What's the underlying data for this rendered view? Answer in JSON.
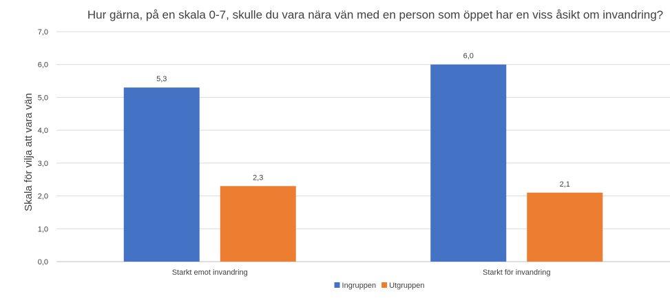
{
  "chart_data": {
    "type": "bar",
    "title": "Hur gärna, på en skala 0-7, skulle du vara nära vän med en person som öppet har en viss åsikt om invandring?",
    "ylabel": "Skala för vilja att vara vän",
    "xlabel": "",
    "categories": [
      "Starkt emot invandring",
      "Starkt för invandring"
    ],
    "series": [
      {
        "name": "Ingruppen",
        "color": "#4472C4",
        "values": [
          5.3,
          6.0
        ],
        "labels": [
          "5,3",
          "6,0"
        ]
      },
      {
        "name": "Utgruppen",
        "color": "#ED7D31",
        "values": [
          2.3,
          2.1
        ],
        "labels": [
          "2,3",
          "2,1"
        ]
      }
    ],
    "ylim": [
      0,
      7
    ],
    "yticks": [
      "0,0",
      "1,0",
      "2,0",
      "3,0",
      "4,0",
      "5,0",
      "6,0",
      "7,0"
    ],
    "grid": true,
    "legend": "bottom-center"
  }
}
